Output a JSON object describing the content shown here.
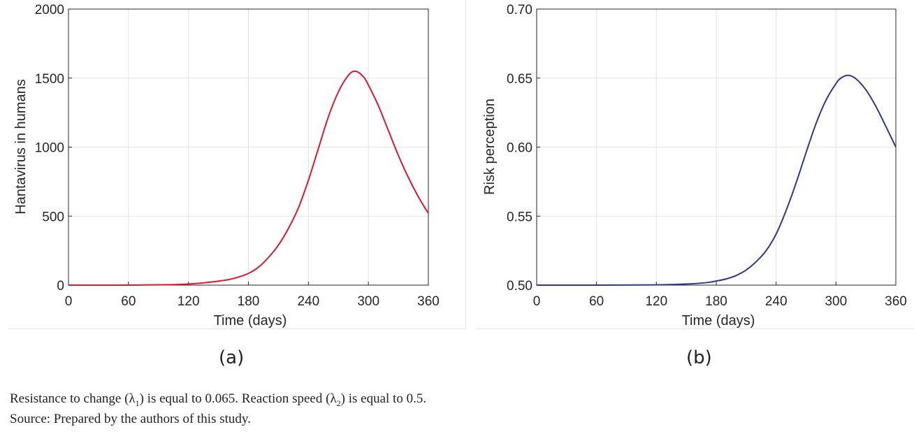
{
  "chart_data": [
    {
      "type": "line",
      "panel_label": "(a)",
      "xlabel": "Time (days)",
      "ylabel": "Hantavirus in humans",
      "xlim": [
        0,
        360
      ],
      "ylim": [
        0,
        2000
      ],
      "xticks": [
        "0",
        "60",
        "120",
        "180",
        "240",
        "300",
        "360"
      ],
      "yticks": [
        "0",
        "500",
        "1000",
        "1500",
        "2000"
      ],
      "grid": true,
      "color": "#e0182f",
      "series": [
        {
          "x": [
            0,
            60,
            100,
            120,
            140,
            160,
            170,
            180,
            190,
            200,
            210,
            220,
            230,
            240,
            250,
            260,
            270,
            280,
            287,
            295,
            300,
            310,
            320,
            330,
            340,
            350,
            360
          ],
          "values": [
            0,
            0,
            3,
            8,
            20,
            40,
            58,
            85,
            130,
            200,
            290,
            410,
            560,
            760,
            990,
            1220,
            1400,
            1520,
            1550,
            1510,
            1450,
            1300,
            1120,
            940,
            780,
            640,
            520
          ]
        }
      ]
    },
    {
      "type": "line",
      "panel_label": "(b)",
      "xlabel": "Time (days)",
      "ylabel": "Risk perception",
      "xlim": [
        0,
        360
      ],
      "ylim": [
        0.5,
        0.7
      ],
      "xticks": [
        "0",
        "60",
        "120",
        "180",
        "240",
        "300",
        "360"
      ],
      "yticks": [
        "0.50",
        "0.55",
        "0.60",
        "0.65",
        "0.70"
      ],
      "grid": true,
      "color": "#2d3990",
      "series": [
        {
          "x": [
            0,
            60,
            120,
            150,
            170,
            180,
            190,
            200,
            210,
            220,
            230,
            240,
            250,
            260,
            270,
            280,
            290,
            300,
            305,
            312,
            320,
            330,
            340,
            350,
            360
          ],
          "values": [
            0.5,
            0.5,
            0.5002,
            0.5008,
            0.5018,
            0.503,
            0.5045,
            0.507,
            0.511,
            0.517,
            0.525,
            0.537,
            0.554,
            0.574,
            0.596,
            0.617,
            0.634,
            0.646,
            0.65,
            0.652,
            0.6495,
            0.6415,
            0.6295,
            0.615,
            0.6
          ]
        }
      ]
    }
  ],
  "notes": {
    "line1_a": "Resistance to change (λ",
    "line1_sub1": "1",
    "line1_b": ") is equal to 0.065. Reaction speed (λ",
    "line1_sub2": "2",
    "line1_c": ") is equal to 0.5.",
    "line2": "Source: Prepared by the authors of this study."
  }
}
